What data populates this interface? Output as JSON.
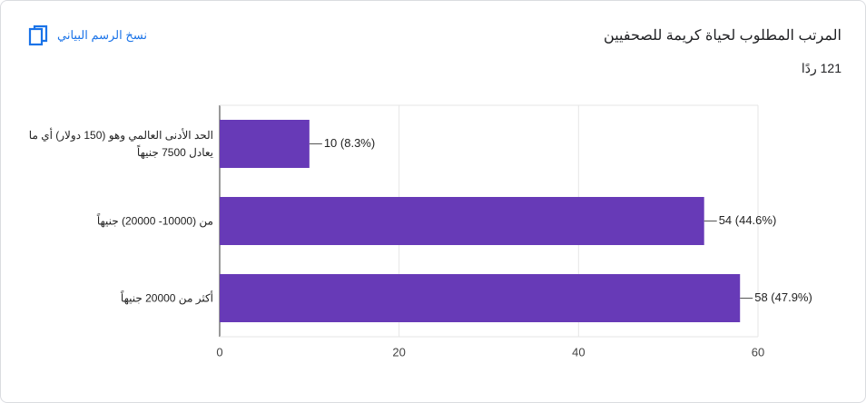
{
  "header": {
    "copy_label": "نسخ الرسم البياني"
  },
  "chart_data": {
    "type": "bar",
    "orientation": "horizontal",
    "title": "المرتب المطلوب لحياة كريمة للصحفيين",
    "subtitle": "121 ردًا",
    "categories": [
      "الحد الأدنى العالمي وهو (150 دولار) أي ما يعادل 7500 جنيهاً",
      "من (10000- 20000) جنيهاً",
      "أكثر من 20000 جنيهاً"
    ],
    "values": [
      10,
      54,
      58
    ],
    "value_labels": [
      "10 (8.3%)",
      "54 (44.6%)",
      "58 (47.9%)"
    ],
    "color": "#673ab7",
    "xlim": [
      0,
      60
    ],
    "xticks": [
      0,
      20,
      40,
      60
    ],
    "grid": true
  }
}
